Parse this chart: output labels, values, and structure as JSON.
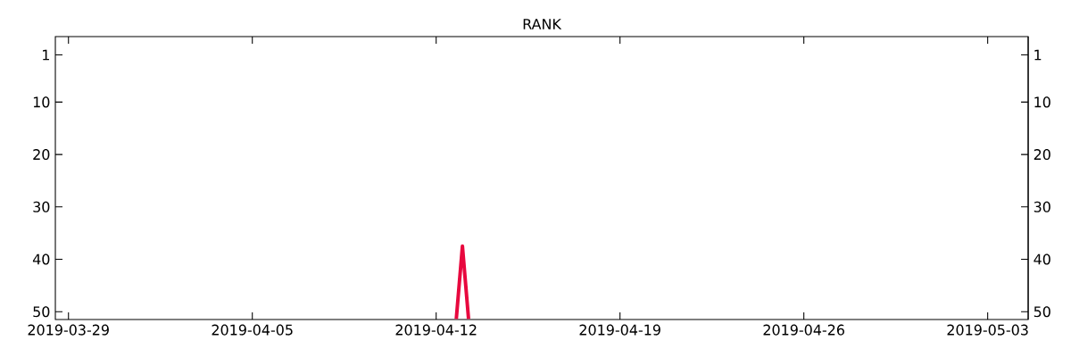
{
  "chart_data": {
    "type": "line",
    "title": "RANK",
    "x": [
      "2019-04-12T18:24",
      "2019-04-13",
      "2019-04-13T05:36"
    ],
    "series": [
      {
        "color": "#e8083e",
        "values": [
          51.4,
          37.5,
          51.4
        ]
      }
    ],
    "xlim": [
      "2019-03-28T12:00",
      "2019-05-04T13:00"
    ],
    "xticks": [
      "2019-03-29",
      "2019-04-05",
      "2019-04-12",
      "2019-04-19",
      "2019-04-26",
      "2019-05-03"
    ],
    "ylim": [
      51.5,
      -2.5
    ],
    "yticks": [
      1,
      10,
      20,
      30,
      40,
      50
    ],
    "y2lim": [
      51.5,
      -2.5
    ],
    "y2ticks": [
      1,
      10,
      20,
      30,
      40,
      50
    ],
    "grid": false,
    "marker": "none",
    "line_style": "solid"
  }
}
